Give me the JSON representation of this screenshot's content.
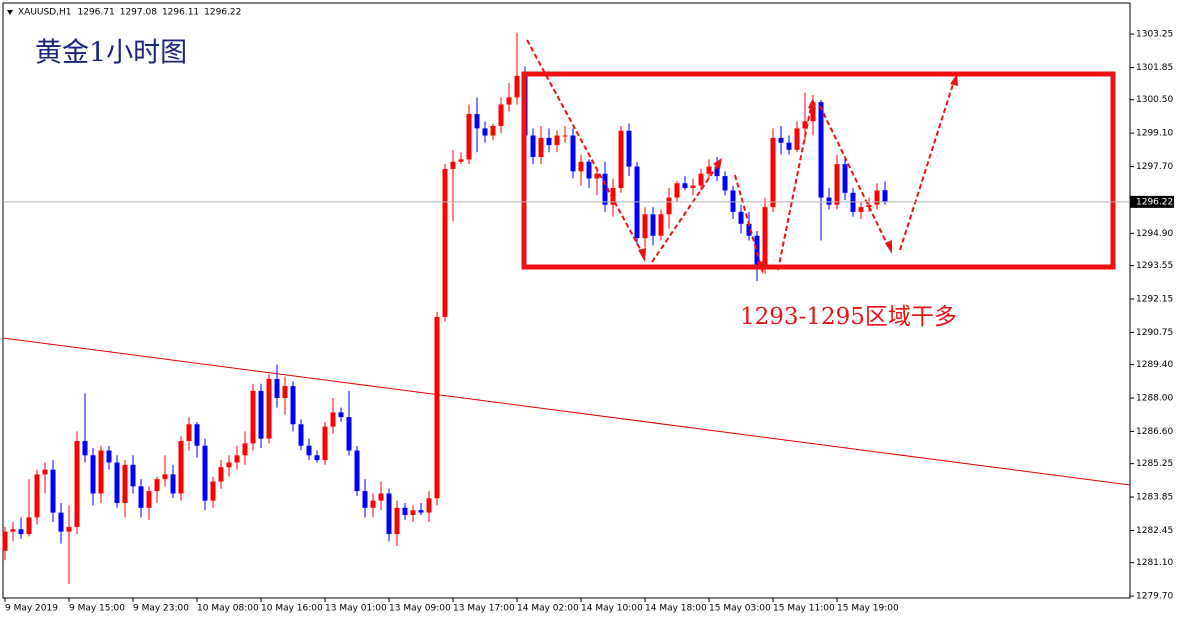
{
  "chart_data": {
    "type": "candlestick",
    "symbol": "XAUUSD,H1",
    "title": "黄金1小时图",
    "annotation": "1293-1295区域干多",
    "up_color": "#ff0000",
    "down_color": "#0000ff",
    "categories": [
      "9 May 2019",
      null,
      null,
      null,
      null,
      null,
      null,
      null,
      "9 May 15:00",
      null,
      null,
      null,
      null,
      null,
      null,
      null,
      "9 May 23:00",
      null,
      null,
      null,
      null,
      null,
      null,
      null,
      "10 May 08:00",
      null,
      null,
      null,
      null,
      null,
      null,
      null,
      "10 May 16:00",
      null,
      null,
      null,
      null,
      null,
      null,
      null,
      "13 May 01:00",
      null,
      null,
      null,
      null,
      null,
      null,
      null,
      "13 May 09:00",
      null,
      null,
      null,
      null,
      null,
      null,
      null,
      "13 May 17:00",
      null,
      null,
      null,
      null,
      null,
      null,
      null,
      "14 May 02:00",
      null,
      null,
      null,
      null,
      null,
      null,
      null,
      "14 May 10:00",
      null,
      null,
      null,
      null,
      null,
      null,
      null,
      "14 May 18:00",
      null,
      null,
      null,
      null,
      null,
      null,
      null,
      "15 May 03:00",
      null,
      null,
      null,
      null,
      null,
      null,
      null,
      "15 May 11:00",
      null,
      null,
      null,
      null,
      null,
      null,
      null,
      "15 May 19:00",
      null,
      null,
      null,
      null,
      null,
      null
    ],
    "open": [
      1281.6,
      1282.4,
      1282.5,
      1282.3,
      1283.0,
      1284.8,
      1285.0,
      1283.2,
      1282.4,
      1282.6,
      1286.2,
      1285.6,
      1284.0,
      1285.8,
      1285.3,
      1283.6,
      1285.2,
      1284.3,
      1283.4,
      1284.1,
      1284.6,
      1284.8,
      1284.0,
      1286.2,
      1286.9,
      1286.0,
      1283.7,
      1284.5,
      1285.1,
      1285.3,
      1285.6,
      1286.1,
      1288.3,
      1286.3,
      1288.8,
      1288.0,
      1288.5,
      1286.9,
      1286.0,
      1285.6,
      1285.4,
      1286.8,
      1287.4,
      1287.2,
      1285.8,
      1284.1,
      1283.4,
      1283.7,
      1284.0,
      1282.3,
      1283.4,
      1283.1,
      1283.3,
      1283.2,
      1283.8,
      1291.4,
      1297.6,
      1297.9,
      1298.0,
      1299.9,
      1299.3,
      1299.0,
      1299.4,
      1300.3,
      1300.6,
      1301.5,
      1299.0,
      1298.1,
      1298.9,
      1298.6,
      1299.0,
      1299.0,
      1297.5,
      1297.9,
      1297.2,
      1297.4,
      1296.1,
      1296.8,
      1299.2,
      1297.7,
      1294.7,
      1295.7,
      1294.8,
      1295.7,
      1296.4,
      1297.0,
      1296.8,
      1296.9,
      1297.4,
      1297.7,
      1297.3,
      1296.7,
      1295.8,
      1295.3,
      1294.8,
      1293.4,
      1296.0,
      1298.9,
      1298.7,
      1298.4,
      1299.3,
      1299.6,
      1300.4,
      1296.4,
      1296.1,
      1297.8,
      1296.6,
      1295.8,
      1296.0,
      1296.1,
      1296.71
    ],
    "high": [
      1282.6,
      1282.8,
      1283.0,
      1284.6,
      1285.0,
      1285.3,
      1285.4,
      1283.6,
      1283.5,
      1286.6,
      1288.2,
      1285.9,
      1286.0,
      1286.0,
      1285.6,
      1285.4,
      1285.6,
      1284.6,
      1284.3,
      1284.7,
      1285.6,
      1285.2,
      1286.4,
      1287.2,
      1287.0,
      1286.3,
      1284.7,
      1285.4,
      1285.6,
      1286.0,
      1286.6,
      1288.6,
      1288.6,
      1289.0,
      1289.4,
      1288.9,
      1288.7,
      1287.1,
      1286.3,
      1285.8,
      1287.0,
      1288.0,
      1287.6,
      1288.3,
      1286.0,
      1284.6,
      1284.0,
      1284.5,
      1284.2,
      1283.7,
      1283.6,
      1283.5,
      1283.6,
      1284.1,
      1291.6,
      1297.8,
      1298.4,
      1298.3,
      1300.3,
      1300.6,
      1299.6,
      1299.5,
      1300.6,
      1301.2,
      1303.3,
      1301.9,
      1299.3,
      1299.4,
      1299.3,
      1299.2,
      1299.4,
      1299.3,
      1298.2,
      1298.0,
      1297.6,
      1297.9,
      1297.2,
      1299.4,
      1299.5,
      1297.9,
      1296.0,
      1296.0,
      1295.9,
      1296.8,
      1297.1,
      1297.3,
      1297.2,
      1297.6,
      1298.0,
      1298.1,
      1297.5,
      1296.9,
      1296.1,
      1295.8,
      1295.0,
      1296.4,
      1299.3,
      1299.4,
      1299.0,
      1299.6,
      1300.8,
      1300.7,
      1300.5,
      1296.8,
      1298.2,
      1298.1,
      1296.8,
      1296.2,
      1296.4,
      1297.0,
      1297.08
    ],
    "low": [
      1281.2,
      1282.0,
      1282.1,
      1282.2,
      1282.7,
      1284.0,
      1282.8,
      1281.9,
      1280.2,
      1282.3,
      1285.3,
      1283.5,
      1283.6,
      1285.0,
      1283.4,
      1283.0,
      1284.0,
      1283.0,
      1282.9,
      1283.6,
      1284.3,
      1283.8,
      1283.7,
      1285.8,
      1285.5,
      1283.3,
      1283.4,
      1284.2,
      1284.7,
      1285.0,
      1285.2,
      1285.8,
      1285.9,
      1286.1,
      1287.6,
      1287.3,
      1286.6,
      1285.8,
      1285.4,
      1285.3,
      1285.2,
      1286.5,
      1287.0,
      1285.6,
      1283.9,
      1283.0,
      1283.0,
      1283.3,
      1282.0,
      1281.8,
      1282.9,
      1282.8,
      1283.1,
      1282.8,
      1283.5,
      1291.2,
      1295.4,
      1297.8,
      1297.8,
      1298.3,
      1298.7,
      1298.8,
      1299.1,
      1300.0,
      1300.3,
      1298.7,
      1297.8,
      1297.8,
      1298.3,
      1298.3,
      1298.7,
      1297.2,
      1296.9,
      1296.8,
      1296.5,
      1295.8,
      1295.6,
      1296.6,
      1297.3,
      1294.4,
      1294.3,
      1294.4,
      1294.6,
      1295.1,
      1296.2,
      1296.7,
      1296.5,
      1296.7,
      1297.2,
      1297.1,
      1296.5,
      1295.5,
      1294.9,
      1294.6,
      1292.9,
      1293.2,
      1295.8,
      1298.2,
      1298.2,
      1298.3,
      1298.8,
      1299.0,
      1294.6,
      1295.9,
      1295.9,
      1296.3,
      1295.6,
      1295.5,
      1295.8,
      1295.9,
      1296.11
    ],
    "close": [
      1282.4,
      1282.5,
      1282.3,
      1283.0,
      1284.8,
      1285.0,
      1283.2,
      1282.4,
      1282.6,
      1286.2,
      1285.6,
      1284.0,
      1285.8,
      1285.3,
      1283.6,
      1285.2,
      1284.3,
      1283.4,
      1284.1,
      1284.6,
      1284.8,
      1284.0,
      1286.2,
      1286.9,
      1286.0,
      1283.7,
      1284.5,
      1285.1,
      1285.3,
      1285.6,
      1286.1,
      1288.3,
      1286.3,
      1288.8,
      1288.0,
      1288.5,
      1286.9,
      1286.0,
      1285.6,
      1285.4,
      1286.8,
      1287.4,
      1287.2,
      1285.8,
      1284.1,
      1283.4,
      1283.7,
      1284.0,
      1282.3,
      1283.4,
      1283.1,
      1283.3,
      1283.2,
      1283.8,
      1291.4,
      1297.6,
      1297.9,
      1298.0,
      1299.9,
      1299.3,
      1299.0,
      1299.4,
      1300.3,
      1300.6,
      1301.5,
      1299.0,
      1298.1,
      1298.9,
      1298.6,
      1299.0,
      1299.0,
      1297.5,
      1297.9,
      1297.2,
      1297.4,
      1296.1,
      1296.8,
      1299.2,
      1297.7,
      1294.7,
      1295.7,
      1294.8,
      1295.7,
      1296.4,
      1297.0,
      1296.8,
      1296.9,
      1297.4,
      1297.7,
      1297.3,
      1296.7,
      1295.8,
      1295.3,
      1294.8,
      1293.4,
      1296.0,
      1298.9,
      1298.7,
      1298.4,
      1299.3,
      1299.6,
      1300.4,
      1296.4,
      1296.1,
      1297.8,
      1296.6,
      1295.8,
      1296.0,
      1296.1,
      1296.7,
      1296.22
    ],
    "ylim": [
      1279.62,
      1304.47
    ],
    "yticks": [
      1303.25,
      1301.85,
      {
        "value": 1300.5,
        "label": "1300.50"
      },
      {
        "value": 1299.1,
        "label": "1299.10"
      },
      {
        "value": 1297.7,
        "label": "1297.70"
      },
      {
        "value": 1294.9,
        "label": "1294.90"
      },
      1293.55,
      1292.15,
      1290.75,
      {
        "value": 1289.4,
        "label": "1289.40"
      },
      {
        "value": 1288,
        "label": "1288.00"
      },
      {
        "value": 1286.6,
        "label": "1286.60"
      },
      1285.25,
      1283.85,
      1282.45,
      {
        "value": 1281.1,
        "label": "1281.10"
      },
      {
        "value": 1279.7,
        "label": "1279.70"
      }
    ]
  }
}
